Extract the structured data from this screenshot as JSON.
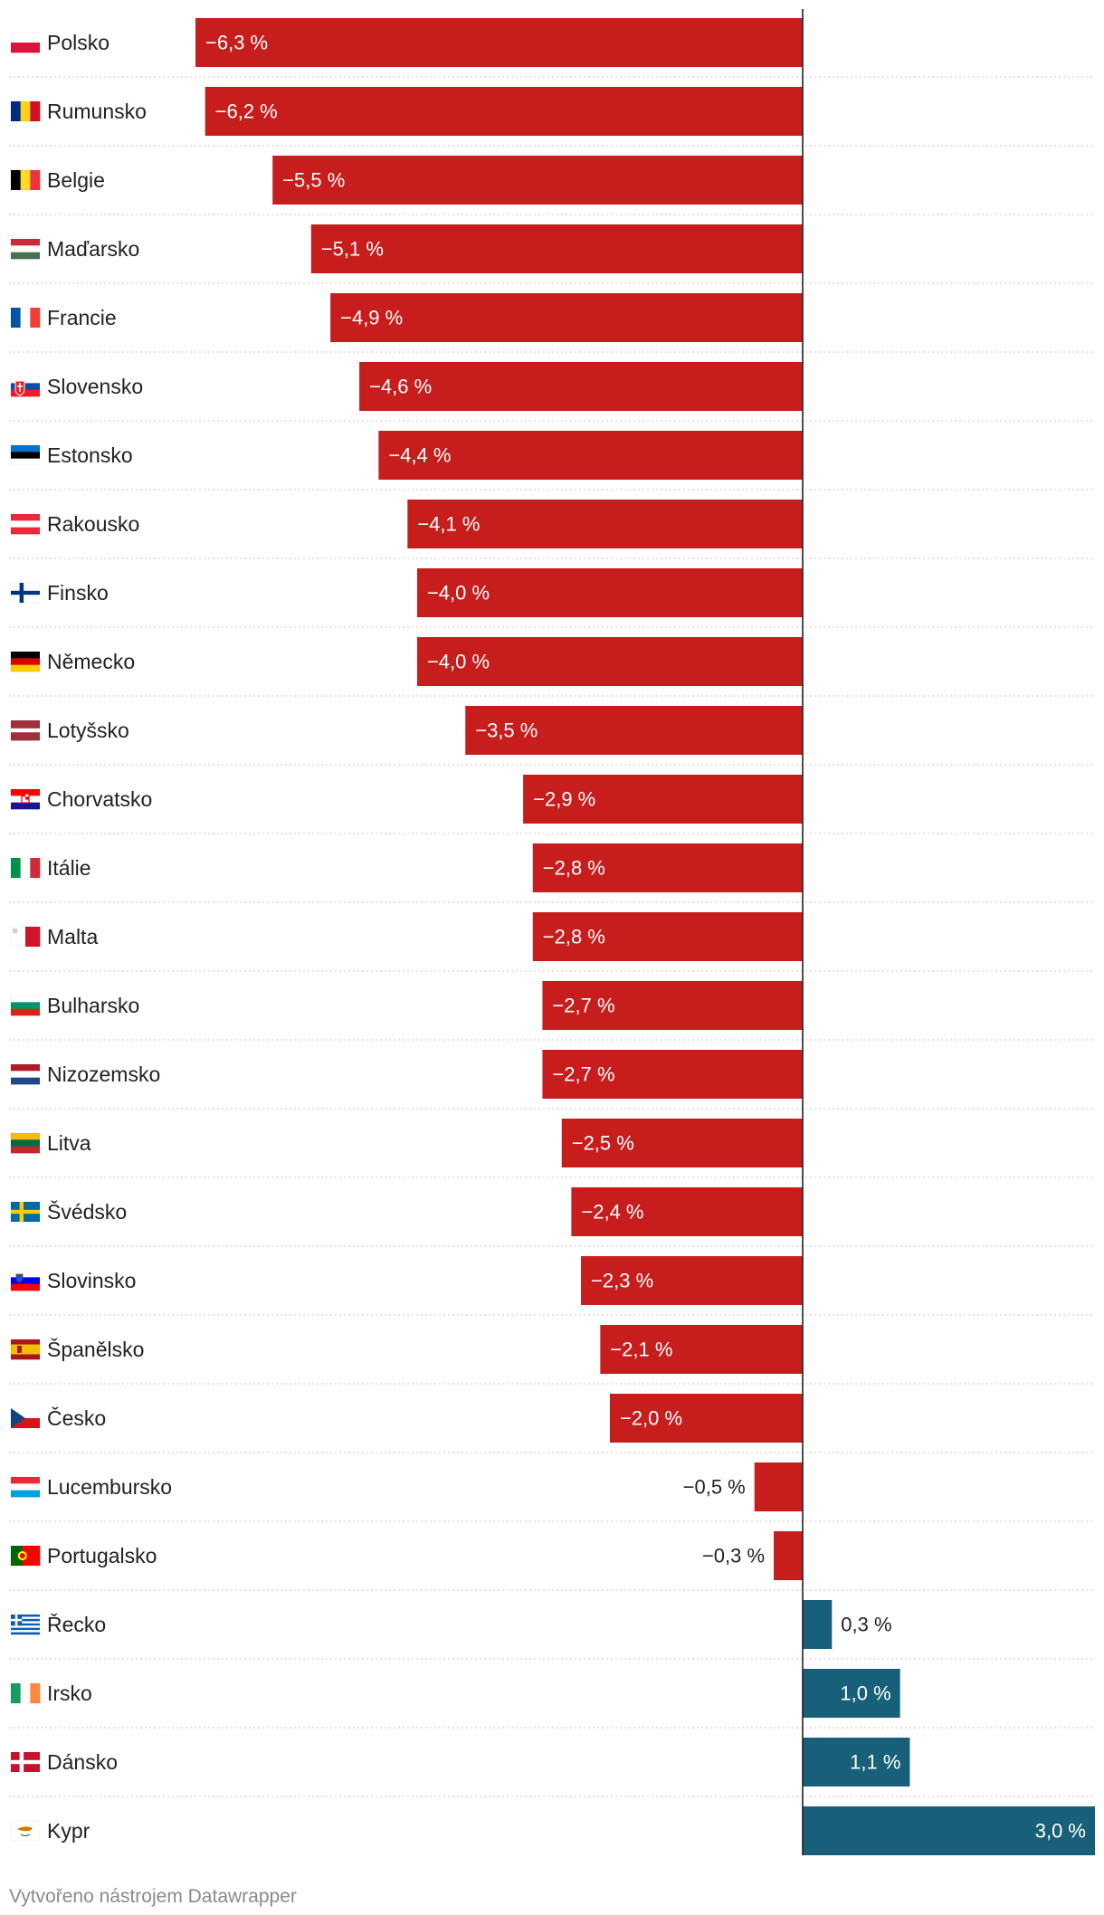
{
  "chart_data": {
    "type": "bar",
    "orientation": "horizontal",
    "categories": [
      "Polsko",
      "Rumunsko",
      "Belgie",
      "Maďarsko",
      "Francie",
      "Slovensko",
      "Estonsko",
      "Rakousko",
      "Finsko",
      "Německo",
      "Lotyšsko",
      "Chorvatsko",
      "Itálie",
      "Malta",
      "Bulharsko",
      "Nizozemsko",
      "Litva",
      "Švédsko",
      "Slovinsko",
      "Španělsko",
      "Česko",
      "Lucembursko",
      "Portugalsko",
      "Řecko",
      "Irsko",
      "Dánsko",
      "Kypr"
    ],
    "values": [
      -6.3,
      -6.2,
      -5.5,
      -5.1,
      -4.9,
      -4.6,
      -4.4,
      -4.1,
      -4.0,
      -4.0,
      -3.5,
      -2.9,
      -2.8,
      -2.8,
      -2.7,
      -2.7,
      -2.5,
      -2.4,
      -2.3,
      -2.1,
      -2.0,
      -0.5,
      -0.3,
      0.3,
      1.0,
      1.1,
      3.0
    ],
    "labels": [
      "−6,3 %",
      "−6,2 %",
      "−5,5 %",
      "−5,1 %",
      "−4,9 %",
      "−4,6 %",
      "−4,4 %",
      "−4,1 %",
      "−4,0 %",
      "−4,0 %",
      "−3,5 %",
      "−2,9 %",
      "−2,8 %",
      "−2,8 %",
      "−2,7 %",
      "−2,7 %",
      "−2,5 %",
      "−2,4 %",
      "−2,3 %",
      "−2,1 %",
      "−2,0 %",
      "−0,5 %",
      "−0,3 %",
      "0,3 %",
      "1,0 %",
      "1,1 %",
      "3,0 %"
    ],
    "flags": [
      "pl",
      "ro",
      "be",
      "hu",
      "fr",
      "sk",
      "ee",
      "at",
      "fi",
      "de",
      "lv",
      "hr",
      "it",
      "mt",
      "bg",
      "nl",
      "lt",
      "se",
      "si",
      "es",
      "cz",
      "lu",
      "pt",
      "gr",
      "ie",
      "dk",
      "cy"
    ],
    "xlim": [
      -6.3,
      3.0
    ],
    "unit": "%",
    "colors": {
      "negative": "#c71e1d",
      "positive": "#18607a",
      "axis": "#222222",
      "grid": "#d0d0d0",
      "label_text": "#222222"
    }
  },
  "footer": {
    "credit": "Vytvořeno nástrojem Datawrapper"
  }
}
